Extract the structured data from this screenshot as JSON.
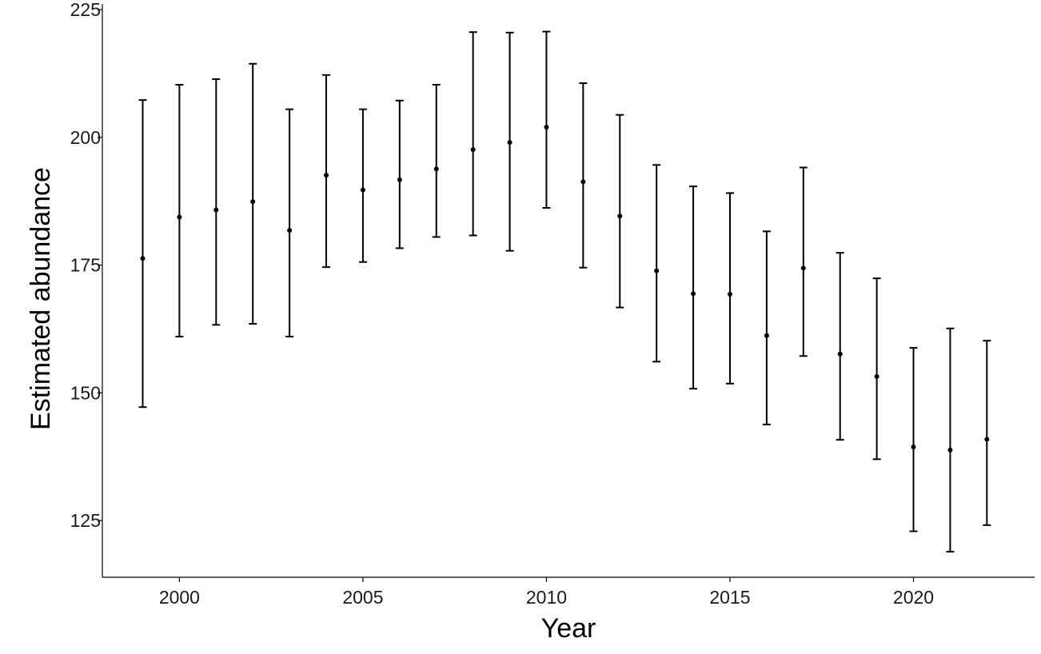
{
  "chart_data": {
    "type": "scatter",
    "title": "",
    "xlabel": "Year",
    "ylabel": "Estimated abundance",
    "xlim": [
      1997.9,
      2023.3
    ],
    "ylim": [
      113.9,
      226.1
    ],
    "x_ticks": [
      2000,
      2005,
      2010,
      2015,
      2020
    ],
    "y_ticks": [
      125,
      150,
      175,
      200,
      225
    ],
    "grid": false,
    "legend": "none",
    "points": [
      {
        "x": 1999,
        "y": 176.3,
        "lower": 147.2,
        "upper": 207.3
      },
      {
        "x": 2000,
        "y": 184.4,
        "lower": 161.0,
        "upper": 210.3
      },
      {
        "x": 2001,
        "y": 185.8,
        "lower": 163.3,
        "upper": 211.4
      },
      {
        "x": 2002,
        "y": 187.4,
        "lower": 163.5,
        "upper": 214.4
      },
      {
        "x": 2003,
        "y": 181.8,
        "lower": 161.0,
        "upper": 205.5
      },
      {
        "x": 2004,
        "y": 192.6,
        "lower": 174.6,
        "upper": 212.2
      },
      {
        "x": 2005,
        "y": 189.7,
        "lower": 175.6,
        "upper": 205.5
      },
      {
        "x": 2006,
        "y": 191.7,
        "lower": 178.3,
        "upper": 207.2
      },
      {
        "x": 2007,
        "y": 193.8,
        "lower": 180.5,
        "upper": 210.3
      },
      {
        "x": 2008,
        "y": 197.6,
        "lower": 180.8,
        "upper": 220.6
      },
      {
        "x": 2009,
        "y": 199.0,
        "lower": 177.8,
        "upper": 220.5
      },
      {
        "x": 2010,
        "y": 202.0,
        "lower": 186.2,
        "upper": 220.7
      },
      {
        "x": 2011,
        "y": 191.3,
        "lower": 174.5,
        "upper": 210.6
      },
      {
        "x": 2012,
        "y": 184.6,
        "lower": 166.7,
        "upper": 204.4
      },
      {
        "x": 2013,
        "y": 173.9,
        "lower": 156.1,
        "upper": 194.6
      },
      {
        "x": 2014,
        "y": 169.4,
        "lower": 150.8,
        "upper": 190.4
      },
      {
        "x": 2015,
        "y": 169.3,
        "lower": 151.8,
        "upper": 189.1
      },
      {
        "x": 2016,
        "y": 161.2,
        "lower": 143.8,
        "upper": 181.6
      },
      {
        "x": 2017,
        "y": 174.4,
        "lower": 157.2,
        "upper": 194.1
      },
      {
        "x": 2018,
        "y": 157.6,
        "lower": 140.8,
        "upper": 177.4
      },
      {
        "x": 2019,
        "y": 153.2,
        "lower": 137.0,
        "upper": 172.4
      },
      {
        "x": 2020,
        "y": 139.4,
        "lower": 122.9,
        "upper": 158.8
      },
      {
        "x": 2021,
        "y": 138.8,
        "lower": 118.9,
        "upper": 162.6
      },
      {
        "x": 2022,
        "y": 140.9,
        "lower": 124.1,
        "upper": 160.2
      }
    ]
  }
}
